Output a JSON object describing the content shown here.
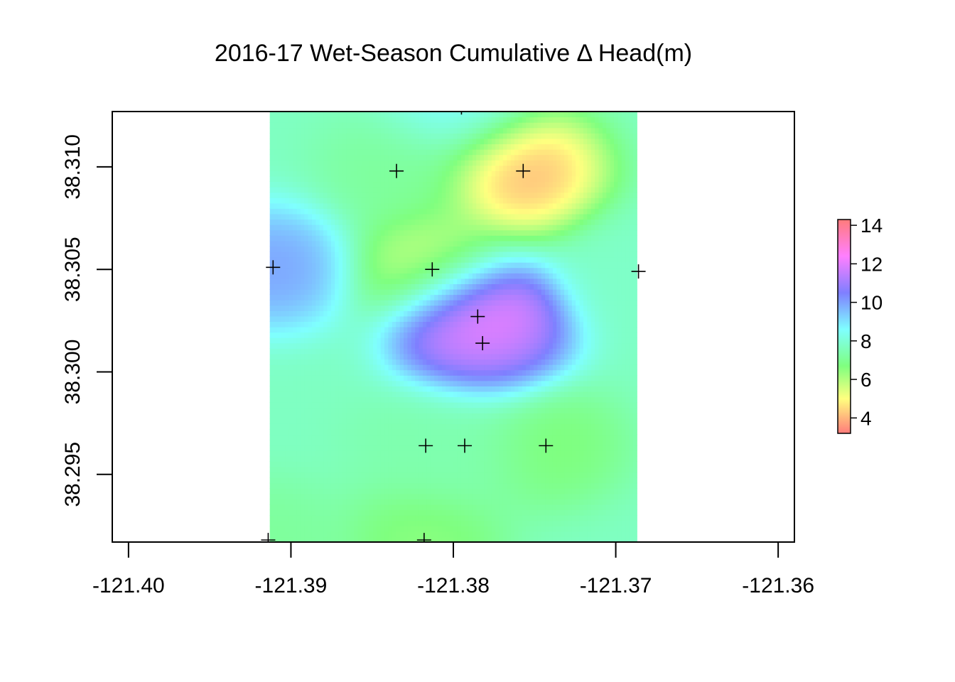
{
  "chart_data": {
    "type": "heatmap",
    "title": "2016-17 Wet-Season Cumulative Δ Head(m)",
    "xlabel": "",
    "ylabel": "",
    "xlim": [
      -121.401,
      -121.359
    ],
    "ylim": [
      38.2917,
      38.3127
    ],
    "x_ticks": [
      {
        "value": -121.4,
        "label": "-121.40"
      },
      {
        "value": -121.39,
        "label": "-121.39"
      },
      {
        "value": -121.38,
        "label": "-121.38"
      },
      {
        "value": -121.37,
        "label": "-121.37"
      },
      {
        "value": -121.36,
        "label": "-121.36"
      }
    ],
    "y_ticks": [
      {
        "value": 38.295,
        "label": "38.295"
      },
      {
        "value": 38.3,
        "label": "38.300"
      },
      {
        "value": 38.305,
        "label": "38.305"
      },
      {
        "value": 38.31,
        "label": "38.310"
      }
    ],
    "raster_extent": {
      "x": [
        -121.3913,
        -121.3687
      ],
      "y": [
        38.2917,
        38.3127
      ]
    },
    "grid": false,
    "colorbar": {
      "position": "right",
      "range": [
        3.2,
        14.3
      ],
      "ticks": [
        {
          "value": 4,
          "label": "4"
        },
        {
          "value": 6,
          "label": "6"
        },
        {
          "value": 8,
          "label": "8"
        },
        {
          "value": 10,
          "label": "10"
        },
        {
          "value": 12,
          "label": "12"
        },
        {
          "value": 14,
          "label": "14"
        }
      ],
      "stops": [
        {
          "value": 3.2,
          "color": "#ff7b7b"
        },
        {
          "value": 5.0,
          "color": "#ffff7f"
        },
        {
          "value": 6.7,
          "color": "#7fff7f"
        },
        {
          "value": 8.6,
          "color": "#7fffff"
        },
        {
          "value": 10.5,
          "color": "#7f7fff"
        },
        {
          "value": 12.4,
          "color": "#ff7fff"
        },
        {
          "value": 14.3,
          "color": "#ff7b7b"
        }
      ]
    },
    "background_value": 7.7,
    "wells": [
      {
        "x": -121.3911,
        "y": 38.3051,
        "value": 10.4
      },
      {
        "x": -121.3835,
        "y": 38.3098,
        "value": 7.0
      },
      {
        "x": -121.3757,
        "y": 38.3098,
        "value": 3.3
      },
      {
        "x": -121.3813,
        "y": 38.305,
        "value": 5.2
      },
      {
        "x": -121.3686,
        "y": 38.3049,
        "value": 7.8
      },
      {
        "x": -121.3785,
        "y": 38.3027,
        "value": 14.0
      },
      {
        "x": -121.3782,
        "y": 38.3014,
        "value": 11.3
      },
      {
        "x": -121.3817,
        "y": 38.2964,
        "value": 7.3
      },
      {
        "x": -121.3793,
        "y": 38.2964,
        "value": 7.5
      },
      {
        "x": -121.3743,
        "y": 38.2964,
        "value": 6.4
      },
      {
        "x": -121.3914,
        "y": 38.2918,
        "value": 7.0
      },
      {
        "x": -121.3818,
        "y": 38.2918,
        "value": 6.3
      },
      {
        "x": -121.3795,
        "y": 38.3129,
        "value": 8.8
      }
    ]
  }
}
